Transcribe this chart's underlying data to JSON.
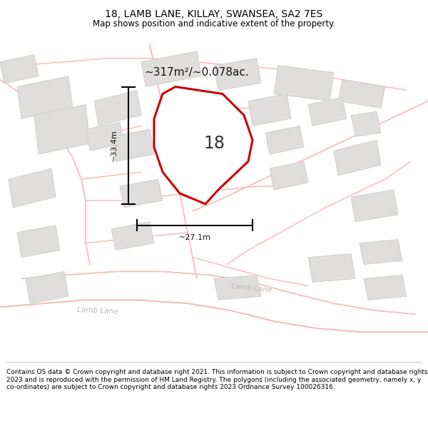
{
  "title": "18, LAMB LANE, KILLAY, SWANSEA, SA2 7ES",
  "subtitle": "Map shows position and indicative extent of the property.",
  "footer": "Contains OS data © Crown copyright and database right 2021. This information is subject to Crown copyright and database rights 2023 and is reproduced with the permission of HM Land Registry. The polygons (including the associated geometry, namely x, y co-ordinates) are subject to Crown copyright and database rights 2023 Ordnance Survey 100026316.",
  "area_label": "~317m²/~0.078ac.",
  "house_number": "18",
  "width_label": "~27.1m",
  "height_label": "~33.4m",
  "bg_color": "#edecea",
  "building_fill": "#e0dedd",
  "building_edge": "#c8c6c4",
  "road_color": "#f5b8b8",
  "highlight_color": "#cc0000",
  "road_label_color": "#c0b8b4",
  "title_fontsize": 10,
  "subtitle_fontsize": 8.5,
  "footer_fontsize": 6.5
}
